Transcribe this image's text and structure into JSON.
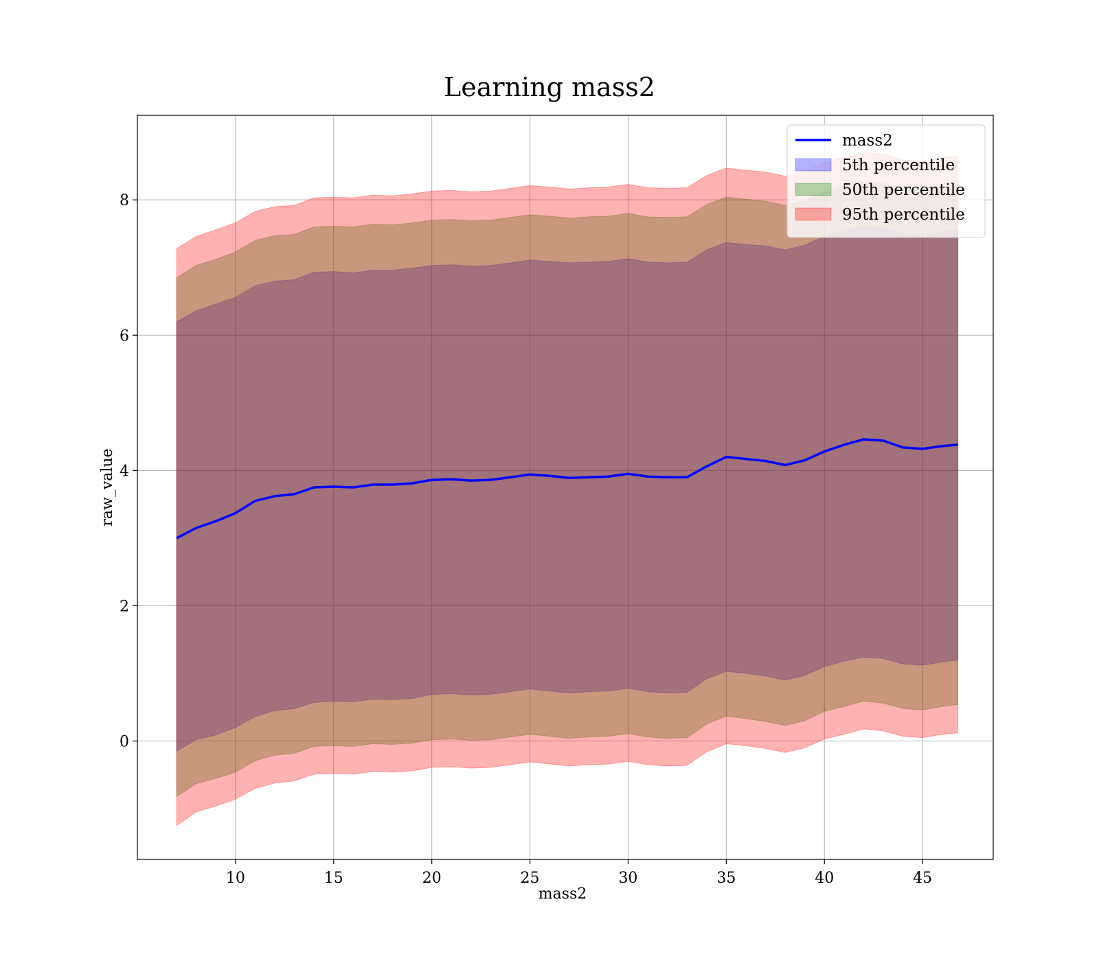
{
  "chart_data": {
    "type": "area",
    "title": "Learning mass2",
    "xlabel": "mass2",
    "ylabel": "raw_value",
    "xlim": [
      5.0,
      48.6
    ],
    "ylim": [
      -1.75,
      9.25
    ],
    "xticks": [
      10,
      15,
      20,
      25,
      30,
      35,
      40,
      45
    ],
    "xtick_labels": [
      "10",
      "15",
      "20",
      "25",
      "30",
      "35",
      "40",
      "45"
    ],
    "yticks": [
      0,
      2,
      4,
      6,
      8
    ],
    "ytick_labels": [
      "0",
      "2",
      "4",
      "6",
      "8"
    ],
    "grid": true,
    "legend_position": "top-right",
    "x": [
      7,
      8,
      9,
      10,
      11,
      12,
      13,
      14,
      15,
      16,
      17,
      18,
      19,
      20,
      21,
      22,
      23,
      24,
      25,
      26,
      27,
      28,
      29,
      30,
      31,
      32,
      33,
      34,
      35,
      36,
      37,
      38,
      39,
      40,
      41,
      42,
      43,
      44,
      45,
      46,
      46.8
    ],
    "series": [
      {
        "name": "mass2",
        "kind": "line",
        "color": "#0000ff",
        "values": [
          3.0,
          3.15,
          3.25,
          3.37,
          3.55,
          3.62,
          3.65,
          3.75,
          3.76,
          3.75,
          3.79,
          3.79,
          3.81,
          3.86,
          3.87,
          3.85,
          3.86,
          3.9,
          3.94,
          3.92,
          3.89,
          3.9,
          3.91,
          3.95,
          3.91,
          3.9,
          3.9,
          4.06,
          4.2,
          4.17,
          4.14,
          4.08,
          4.15,
          4.28,
          4.38,
          4.46,
          4.44,
          4.34,
          4.32,
          4.36,
          4.38
        ]
      },
      {
        "name": "5th percentile",
        "kind": "band",
        "color": "#0000ff",
        "lower": [
          -0.15,
          0.02,
          0.09,
          0.2,
          0.36,
          0.45,
          0.48,
          0.57,
          0.59,
          0.58,
          0.62,
          0.61,
          0.63,
          0.69,
          0.7,
          0.68,
          0.69,
          0.73,
          0.77,
          0.74,
          0.71,
          0.73,
          0.74,
          0.78,
          0.73,
          0.71,
          0.72,
          0.92,
          1.03,
          1.0,
          0.96,
          0.9,
          0.97,
          1.1,
          1.18,
          1.24,
          1.22,
          1.14,
          1.12,
          1.17,
          1.2
        ],
        "upper": [
          6.2,
          6.36,
          6.46,
          6.56,
          6.73,
          6.8,
          6.82,
          6.93,
          6.94,
          6.92,
          6.96,
          6.96,
          6.99,
          7.03,
          7.04,
          7.02,
          7.03,
          7.07,
          7.11,
          7.09,
          7.07,
          7.08,
          7.09,
          7.13,
          7.08,
          7.07,
          7.08,
          7.26,
          7.37,
          7.34,
          7.32,
          7.26,
          7.33,
          7.46,
          7.53,
          7.61,
          7.58,
          7.49,
          7.47,
          7.52,
          7.56
        ]
      },
      {
        "name": "50th percentile",
        "kind": "band",
        "color": "#008000",
        "lower": [
          -0.82,
          -0.63,
          -0.55,
          -0.46,
          -0.29,
          -0.21,
          -0.18,
          -0.08,
          -0.07,
          -0.08,
          -0.04,
          -0.05,
          -0.03,
          0.02,
          0.03,
          0.01,
          0.02,
          0.06,
          0.1,
          0.07,
          0.04,
          0.06,
          0.07,
          0.11,
          0.06,
          0.04,
          0.05,
          0.25,
          0.37,
          0.33,
          0.29,
          0.23,
          0.3,
          0.44,
          0.51,
          0.59,
          0.56,
          0.48,
          0.46,
          0.51,
          0.54
        ],
        "upper": [
          6.85,
          7.03,
          7.12,
          7.23,
          7.4,
          7.47,
          7.49,
          7.6,
          7.61,
          7.6,
          7.64,
          7.63,
          7.66,
          7.7,
          7.71,
          7.69,
          7.7,
          7.74,
          7.78,
          7.76,
          7.73,
          7.75,
          7.76,
          7.8,
          7.75,
          7.74,
          7.75,
          7.93,
          8.04,
          8.01,
          7.98,
          7.92,
          7.99,
          8.12,
          8.19,
          8.27,
          8.25,
          8.16,
          8.14,
          8.19,
          8.22
        ]
      },
      {
        "name": "95th percentile",
        "kind": "band",
        "color": "#ff0000",
        "lower": [
          -1.25,
          -1.05,
          -0.96,
          -0.86,
          -0.7,
          -0.62,
          -0.59,
          -0.49,
          -0.48,
          -0.49,
          -0.45,
          -0.46,
          -0.44,
          -0.39,
          -0.38,
          -0.4,
          -0.39,
          -0.35,
          -0.31,
          -0.34,
          -0.37,
          -0.35,
          -0.34,
          -0.3,
          -0.35,
          -0.37,
          -0.36,
          -0.16,
          -0.04,
          -0.07,
          -0.11,
          -0.17,
          -0.1,
          0.03,
          0.1,
          0.18,
          0.15,
          0.07,
          0.05,
          0.1,
          0.12
        ],
        "upper": [
          7.28,
          7.46,
          7.56,
          7.66,
          7.83,
          7.9,
          7.92,
          8.03,
          8.04,
          8.03,
          8.07,
          8.06,
          8.09,
          8.13,
          8.14,
          8.12,
          8.13,
          8.17,
          8.21,
          8.19,
          8.16,
          8.18,
          8.19,
          8.23,
          8.18,
          8.17,
          8.18,
          8.36,
          8.47,
          8.44,
          8.41,
          8.35,
          8.42,
          8.55,
          8.62,
          8.7,
          8.68,
          8.59,
          8.57,
          8.62,
          8.65
        ]
      }
    ]
  }
}
